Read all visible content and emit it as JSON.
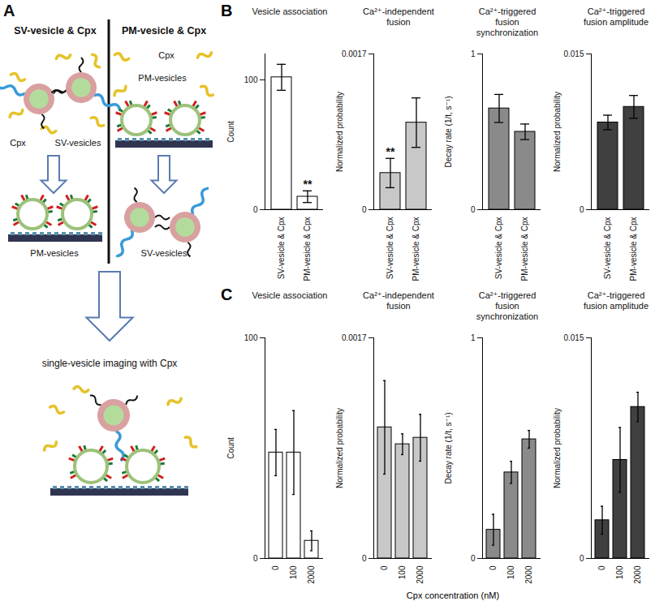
{
  "panel_a": {
    "label": "A",
    "columns": [
      {
        "title": "SV-vesicle & Cpx",
        "top_labels": [
          "Cpx",
          "SV-vesicles"
        ],
        "bottom_label": "PM-vesicles"
      },
      {
        "title": "PM-vesicle & Cpx",
        "top_labels": [
          "Cpx",
          "PM-vesicles"
        ],
        "bottom_label": "SV-vesicles"
      }
    ],
    "result": "single-vesicle imaging with Cpx"
  },
  "panel_b": {
    "label": "B"
  },
  "panel_c": {
    "label": "C",
    "x_label": "Cpx concentration (nM)"
  },
  "chart_data": [
    {
      "panel": "B",
      "type": "bar",
      "title": "Vesicle association",
      "y_label": "Count",
      "categories": [
        "SV-vesicle & Cpx",
        "PM-vesicle & Cpx"
      ],
      "values": [
        102,
        10
      ],
      "errors": [
        10,
        4.5
      ],
      "color": "#ffffff",
      "ylim": [
        0,
        120
      ],
      "yticks": [
        0,
        100
      ],
      "annotations": [
        {
          "category": "PM-vesicle & Cpx",
          "text": "**"
        }
      ]
    },
    {
      "panel": "B",
      "type": "bar",
      "title": "Ca²⁺-independent fusion",
      "y_label": "Normalized probability",
      "categories": [
        "SV-vesicle & Cpx",
        "PM-vesicle & Cpx"
      ],
      "values": [
        0.0004,
        0.00095
      ],
      "errors": [
        0.00016,
        0.00027
      ],
      "color": "#c8c8c8",
      "ylim": [
        0,
        0.0017
      ],
      "yticks": [
        0,
        0.0017
      ],
      "annotations": [
        {
          "category": "SV-vesicle & Cpx",
          "text": "**"
        }
      ]
    },
    {
      "panel": "B",
      "type": "bar",
      "title": "Ca²⁺-triggered fusion synchronization",
      "y_label": "Decay rate (1/t, s⁻¹)",
      "categories": [
        "SV-vesicle & Cpx",
        "PM-vesicle & Cpx"
      ],
      "values": [
        0.65,
        0.5
      ],
      "errors": [
        0.09,
        0.05
      ],
      "color": "#8a8a8a",
      "ylim": [
        0,
        1
      ],
      "yticks": [
        0,
        1
      ]
    },
    {
      "panel": "B",
      "type": "bar",
      "title": "Ca²⁺-triggered fusion amplitude",
      "y_label": "Normalized probability",
      "categories": [
        "SV-vesicle & Cpx",
        "PM-vesicle & Cpx"
      ],
      "values": [
        0.0084,
        0.0099
      ],
      "errors": [
        0.0007,
        0.0011
      ],
      "color": "#404040",
      "ylim": [
        0,
        0.015
      ],
      "yticks": [
        0,
        0.015
      ]
    },
    {
      "panel": "C",
      "type": "bar",
      "title": "Vesicle association",
      "y_label": "Count",
      "categories": [
        "0",
        "100",
        "2000"
      ],
      "values": [
        48,
        48,
        8
      ],
      "errors": [
        10.5,
        19,
        4.5
      ],
      "color": "#ffffff",
      "ylim": [
        0,
        100
      ],
      "yticks": [
        0,
        100
      ]
    },
    {
      "panel": "C",
      "type": "bar",
      "title": "Ca²⁺-independent fusion",
      "y_label": "Normalized probability",
      "categories": [
        "0",
        "100",
        "2000"
      ],
      "values": [
        0.00101,
        0.00088,
        0.00093
      ],
      "errors": [
        0.00036,
        8e-05,
        0.00018
      ],
      "color": "#c8c8c8",
      "ylim": [
        0,
        0.0017
      ],
      "yticks": [
        0,
        0.0017
      ]
    },
    {
      "panel": "C",
      "type": "bar",
      "title": "Ca²⁺-triggered fusion synchronization",
      "y_label": "Decay rate (1/t, s⁻¹)",
      "categories": [
        "0",
        "100",
        "2000"
      ],
      "values": [
        0.13,
        0.39,
        0.54
      ],
      "errors": [
        0.07,
        0.05,
        0.04
      ],
      "color": "#8a8a8a",
      "ylim": [
        0,
        1
      ],
      "yticks": [
        0,
        1
      ]
    },
    {
      "panel": "C",
      "type": "bar",
      "title": "Ca²⁺-triggered fusion amplitude",
      "y_label": "Normalized probability",
      "categories": [
        "0",
        "100",
        "2000"
      ],
      "values": [
        0.0026,
        0.0067,
        0.0103
      ],
      "errors": [
        0.00095,
        0.0022,
        0.001
      ],
      "color": "#404040",
      "ylim": [
        0,
        0.015
      ],
      "yticks": [
        0,
        0.015
      ]
    }
  ]
}
